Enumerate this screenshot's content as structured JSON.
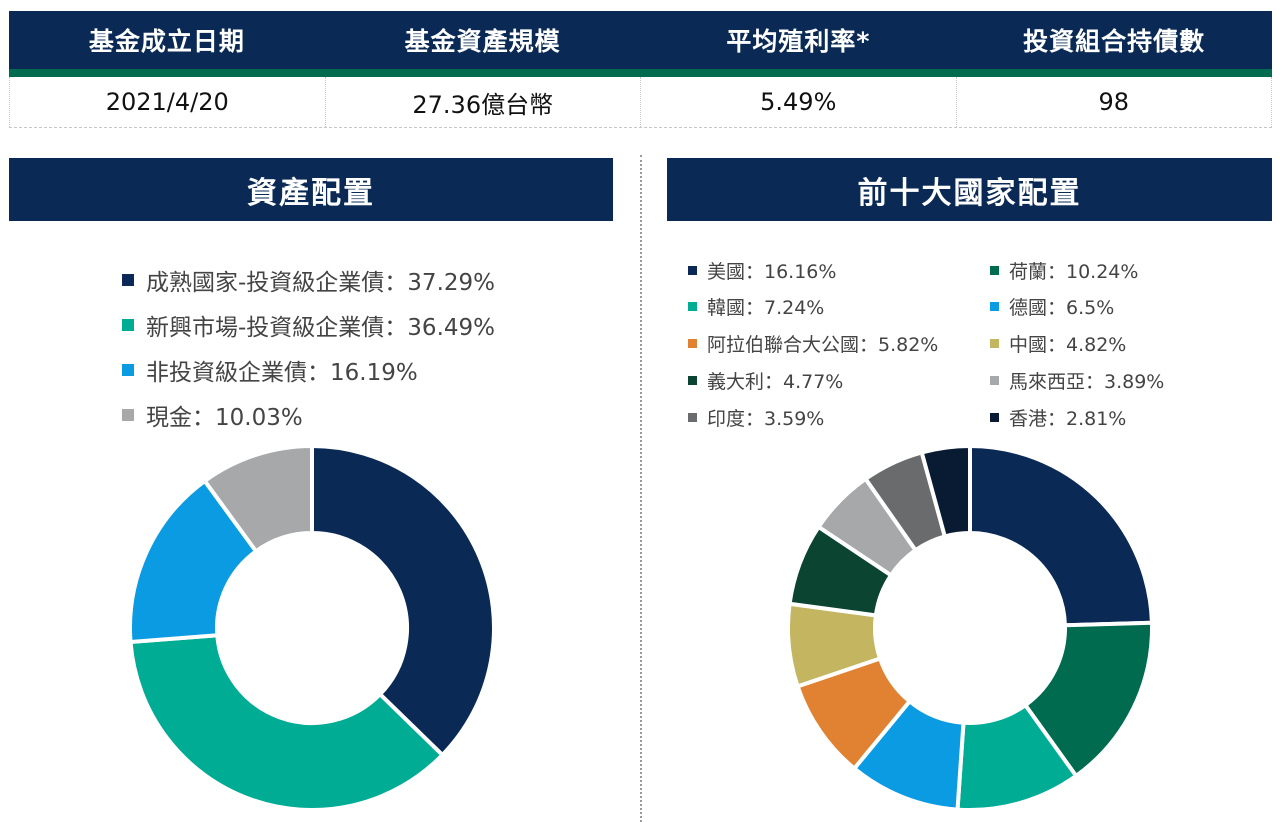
{
  "summary": {
    "headers": [
      "基金成立日期",
      "基金資產規模",
      "平均殖利率*",
      "投資組合持債數"
    ],
    "values": [
      "2021/4/20",
      "27.36億台幣",
      "5.49%",
      "98"
    ]
  },
  "panels": {
    "left_title": "資產配置",
    "right_title": "前十大國家配置"
  },
  "chart_data": [
    {
      "type": "pie",
      "title": "資產配置",
      "labels": [
        "成熟國家-投資級企業債",
        "新興市場-投資級企業債",
        "非投資級企業債",
        "現金"
      ],
      "values": [
        37.29,
        36.49,
        16.19,
        10.03
      ],
      "legend_text": [
        "成熟國家-投資級企業債：37.29%",
        "新興市場-投資級企業債：36.49%",
        "非投資級企業債：16.19%",
        "現金：10.03%"
      ],
      "colors": [
        "#0a2a55",
        "#00ac93",
        "#0b9be3",
        "#a7a8aa"
      ],
      "legend": "top",
      "donut": true
    },
    {
      "type": "pie",
      "title": "前十大國家配置",
      "labels": [
        "美國",
        "荷蘭",
        "韓國",
        "德國",
        "阿拉伯聯合大公國",
        "中國",
        "義大利",
        "馬來西亞",
        "印度",
        "香港"
      ],
      "values": [
        16.16,
        10.24,
        7.24,
        6.5,
        5.82,
        4.82,
        4.77,
        3.89,
        3.59,
        2.81
      ],
      "legend_text": [
        "美國：16.16%",
        "荷蘭：10.24%",
        "韓國：7.24%",
        "德國：6.5%",
        "阿拉伯聯合大公國：5.82%",
        "中國：4.82%",
        "義大利：4.77%",
        "馬來西亞：3.89%",
        "印度：3.59%",
        "香港：2.81%"
      ],
      "colors": [
        "#0a2a55",
        "#006b4f",
        "#00ac93",
        "#0b9be3",
        "#e08231",
        "#c4b561",
        "#0b4430",
        "#a7a8aa",
        "#6a6b6d",
        "#091a33"
      ],
      "legend": "top",
      "donut": true
    }
  ]
}
